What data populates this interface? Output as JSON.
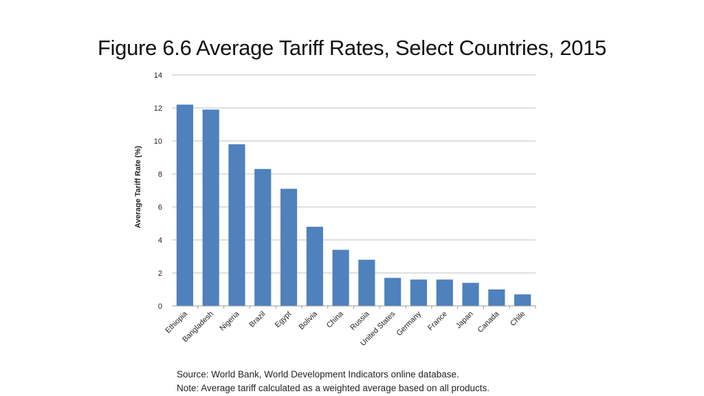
{
  "slide": {
    "title": "Figure 6.6 Average Tariff Rates, Select Countries, 2015",
    "source": "Source: World Bank, World Development Indicators online database.",
    "note": "Note: Average tariff calculated as a weighted average based on all products."
  },
  "chart_data": {
    "type": "bar",
    "title": "",
    "xlabel": "",
    "ylabel": "Average Tariff Rate (%)",
    "categories": [
      "Ethiopia",
      "Bangladesh",
      "Nigeria",
      "Brazil",
      "Egypt",
      "Bolivia",
      "China",
      "Russia",
      "United States",
      "Germany",
      "France",
      "Japan",
      "Canada",
      "Chile"
    ],
    "values": [
      12.2,
      11.9,
      9.8,
      8.3,
      7.1,
      4.8,
      3.4,
      2.8,
      1.7,
      1.6,
      1.6,
      1.4,
      1.0,
      0.7
    ],
    "ylim": [
      0,
      14
    ],
    "yticks": [
      0,
      2,
      4,
      6,
      8,
      10,
      12,
      14
    ],
    "grid": true,
    "legend": "none",
    "bar_color": "#4F81BD",
    "grid_color": "#BFBFBF"
  }
}
